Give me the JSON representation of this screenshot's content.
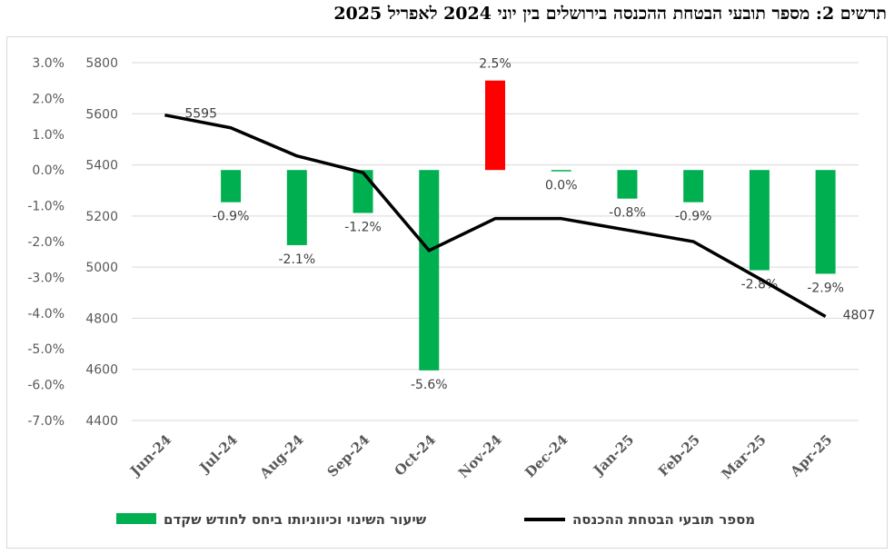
{
  "chart_data": {
    "title": "תרשים 2: מספר תובעי הבטחת ההכנסה בירושלים בין יוני 2024 לאפריל 2025",
    "type": "bar+line",
    "categories": [
      "Jun-24",
      "Jul-24",
      "Aug-24",
      "Sep-24",
      "Oct-24",
      "Nov-24",
      "Dec-24",
      "Jan-25",
      "Feb-25",
      "Mar-25",
      "Apr-25"
    ],
    "series": [
      {
        "name": "שיעור השינוי וכיווניותו ביחס לחודש שקדם",
        "type": "bar",
        "axis": "left",
        "values": [
          null,
          -0.9,
          -2.1,
          -1.2,
          -5.6,
          2.5,
          0.0,
          -0.8,
          -0.9,
          -2.8,
          -2.9
        ],
        "labels": [
          "",
          "-0.9%",
          "-2.1%",
          "-1.2%",
          "-5.6%",
          "2.5%",
          "0.0%",
          "-0.8%",
          "-0.9%",
          "-2.8%",
          "-2.9%"
        ],
        "colors": {
          "positive": "#ff0000",
          "negative": "#00b050"
        }
      },
      {
        "name": "מספר תובעי הבטחת ההכנסה",
        "type": "line",
        "axis": "right",
        "values": [
          5595,
          5545,
          5435,
          5370,
          5065,
          5190,
          5190,
          5145,
          5100,
          4955,
          4807
        ],
        "labels": [
          "5595",
          "",
          "",
          "",
          "",
          "",
          "",
          "",
          "",
          "",
          "4807"
        ],
        "color": "#000000"
      }
    ],
    "y_left": {
      "min": -7.0,
      "max": 3.0,
      "step": 1.0,
      "ticks": [
        "3.0%",
        "2.0%",
        "1.0%",
        "0.0%",
        "-1.0%",
        "-2.0%",
        "-3.0%",
        "-4.0%",
        "-5.0%",
        "-6.0%",
        "-7.0%"
      ]
    },
    "y_right": {
      "min": 4400,
      "max": 5800,
      "step": 200,
      "ticks": [
        "5800",
        "5600",
        "5400",
        "5200",
        "5000",
        "4800",
        "4600",
        "4400"
      ]
    },
    "grid": true,
    "legend_position": "bottom"
  }
}
